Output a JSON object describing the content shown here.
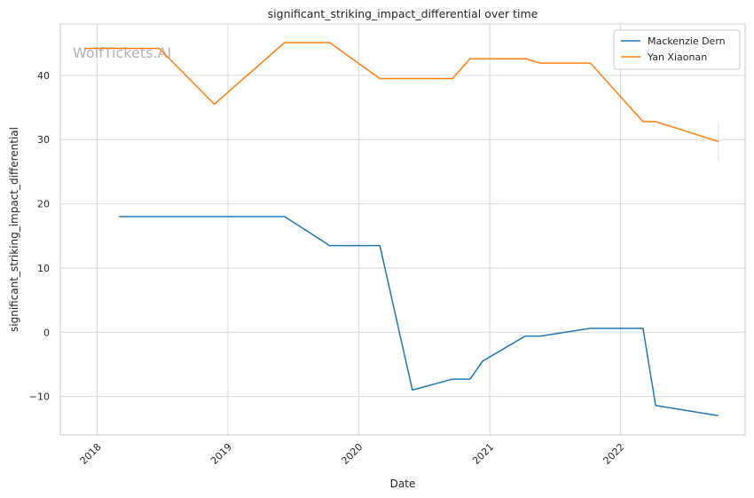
{
  "chart_data": {
    "type": "line",
    "title": "significant_striking_impact_differential over time",
    "xlabel": "Date",
    "ylabel": "significant_striking_impact_differential",
    "xlim": [
      "2017-09-20",
      "2022-12-15"
    ],
    "ylim": [
      -16,
      48
    ],
    "x_ticks": [
      "2018-01-01",
      "2019-01-01",
      "2020-01-01",
      "2021-01-01",
      "2022-01-01"
    ],
    "x_tick_labels": [
      "2018",
      "2019",
      "2020",
      "2021",
      "2022"
    ],
    "y_ticks": [
      -10,
      0,
      10,
      20,
      30,
      40
    ],
    "y_tick_labels": [
      "−10",
      "0",
      "10",
      "20",
      "30",
      "40"
    ],
    "grid": true,
    "legend_position": "top-right",
    "watermark": "WolfTickets.AI",
    "colors": {
      "Mackenzie Dern": "#1f77b4",
      "Yan Xiaonan": "#ff7f0e"
    },
    "series": [
      {
        "name": "Mackenzie Dern",
        "color": "#1f77b4",
        "points": [
          {
            "x": "2018-03-03",
            "y": 18.0
          },
          {
            "x": "2019-06-08",
            "y": 18.0
          },
          {
            "x": "2019-10-12",
            "y": 13.5
          },
          {
            "x": "2020-02-29",
            "y": 13.5
          },
          {
            "x": "2020-05-30",
            "y": -9.0
          },
          {
            "x": "2020-09-19",
            "y": -7.3
          },
          {
            "x": "2020-11-07",
            "y": -7.3
          },
          {
            "x": "2020-12-12",
            "y": -4.5
          },
          {
            "x": "2021-04-10",
            "y": -0.6
          },
          {
            "x": "2021-05-22",
            "y": -0.6
          },
          {
            "x": "2021-10-09",
            "y": 0.6
          },
          {
            "x": "2022-03-05",
            "y": 0.6
          },
          {
            "x": "2022-04-09",
            "y": -11.4
          },
          {
            "x": "2022-10-01",
            "y": -13.0
          }
        ]
      },
      {
        "name": "Yan Xiaonan",
        "color": "#ff7f0e",
        "points": [
          {
            "x": "2017-11-25",
            "y": 44.2
          },
          {
            "x": "2018-06-23",
            "y": 44.2
          },
          {
            "x": "2018-11-24",
            "y": 35.5
          },
          {
            "x": "2019-06-08",
            "y": 45.1
          },
          {
            "x": "2019-10-12",
            "y": 45.1
          },
          {
            "x": "2020-02-29",
            "y": 39.5
          },
          {
            "x": "2020-09-19",
            "y": 39.5
          },
          {
            "x": "2020-11-07",
            "y": 42.6
          },
          {
            "x": "2021-04-10",
            "y": 42.6
          },
          {
            "x": "2021-05-22",
            "y": 41.9
          },
          {
            "x": "2021-10-09",
            "y": 41.9
          },
          {
            "x": "2022-03-05",
            "y": 32.8
          },
          {
            "x": "2022-04-09",
            "y": 32.8
          },
          {
            "x": "2022-10-01",
            "y": 29.7
          }
        ]
      }
    ]
  }
}
